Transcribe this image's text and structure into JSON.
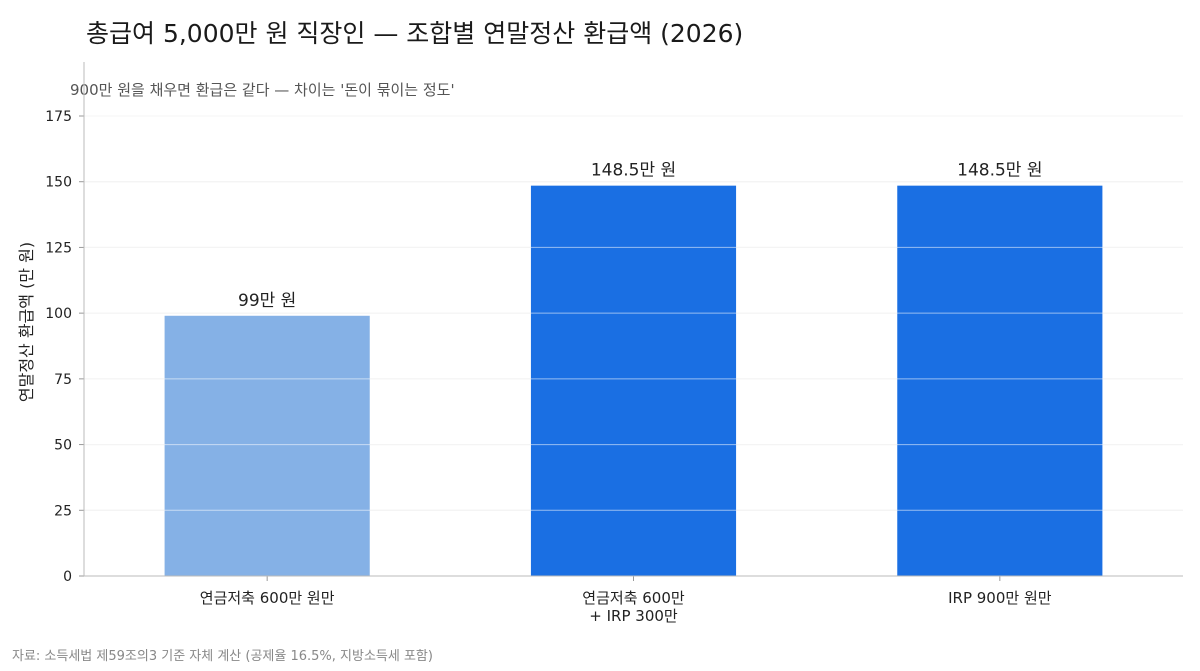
{
  "title": "총급여 5,000만 원 직장인 — 조합별 연말정산 환급액 (2026)",
  "subtitle": "900만 원을 채우면 환급은 같다 — 차이는 '돈이 묶이는 정도'",
  "source": "자료: 소득세법 제59조의3 기준 자체 계산 (공제율 16.5%, 지방소득세 포함)",
  "chart_data": {
    "type": "bar",
    "categories": [
      [
        "연금저축 600만 원만"
      ],
      [
        "연금저축 600만",
        "+ IRP 300만"
      ],
      [
        "IRP 900만 원만"
      ]
    ],
    "values": [
      99,
      148.5,
      148.5
    ],
    "data_labels": [
      "99만 원",
      "148.5만 원",
      "148.5만 원"
    ],
    "colors": [
      "#85b1e6",
      "#1a6fe3",
      "#1a6fe3"
    ],
    "ylabel": "연말정산 환급액 (만 원)",
    "ylim": [
      0,
      175
    ],
    "yticks": [
      0,
      25,
      50,
      75,
      100,
      125,
      150,
      175
    ],
    "grid": true,
    "legend": "none"
  }
}
